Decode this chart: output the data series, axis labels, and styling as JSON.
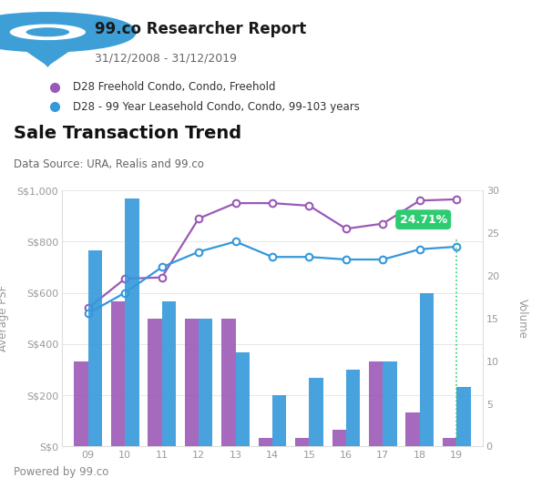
{
  "years": [
    9,
    10,
    11,
    12,
    13,
    14,
    15,
    16,
    17,
    18,
    19
  ],
  "freehold_psf": [
    540,
    655,
    660,
    890,
    950,
    950,
    940,
    850,
    870,
    960,
    965
  ],
  "leasehold_psf": [
    520,
    600,
    700,
    760,
    800,
    740,
    740,
    730,
    730,
    770,
    780
  ],
  "freehold_vol": [
    10,
    17,
    15,
    15,
    15,
    1,
    1,
    2,
    10,
    4,
    1
  ],
  "leasehold_vol": [
    23,
    29,
    17,
    15,
    11,
    6,
    8,
    9,
    10,
    18,
    7
  ],
  "freehold_color": "#9B59B6",
  "leasehold_color": "#3498DB",
  "title": "Sale Transaction Trend",
  "subtitle": "Data Source: URA, Realis and 99.co",
  "ylabel_left": "Average PSF",
  "ylabel_right": "Volume",
  "annotation_text": "24.71%",
  "header_title": "99.co Researcher Report",
  "header_date": "31/12/2008 - 31/12/2019",
  "legend1": "D28 Freehold Condo, Condo, Freehold",
  "legend2": "D28 - 99 Year Leasehold Condo, Condo, 99-103 years",
  "footer": "Powered by 99.co",
  "bg_header": "#f2f2f2",
  "yticks_left": [
    0,
    200,
    400,
    600,
    800,
    1000
  ],
  "yticks_right": [
    0,
    5,
    10,
    15,
    20,
    25,
    30
  ],
  "logo_color": "#3d9fd5",
  "green_annotation": "#2ecc71"
}
